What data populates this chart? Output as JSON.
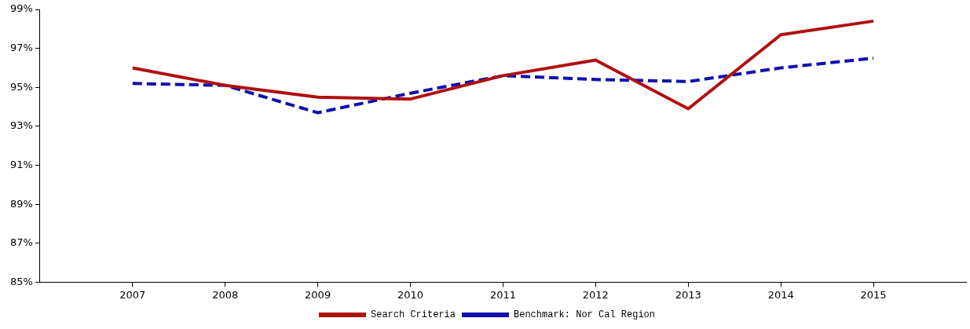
{
  "chart_data": {
    "type": "line",
    "x": [
      2007,
      2008,
      2009,
      2010,
      2011,
      2012,
      2013,
      2014,
      2015
    ],
    "series": [
      {
        "name": "Search Criteria",
        "color": "#b01010",
        "line_style": "solid",
        "values": [
          96.0,
          95.1,
          94.5,
          94.4,
          95.6,
          96.4,
          93.9,
          97.7,
          98.4
        ]
      },
      {
        "name": "Benchmark: Nor Cal Region",
        "color": "#1010b0",
        "line_style": "dashed",
        "values": [
          95.2,
          95.1,
          93.7,
          94.7,
          95.6,
          95.4,
          95.3,
          96.0,
          96.5
        ]
      }
    ],
    "xlim": [
      2006,
      2016
    ],
    "xticks": [
      2007,
      2008,
      2009,
      2010,
      2011,
      2012,
      2013,
      2014,
      2015
    ],
    "ylim": [
      85,
      99
    ],
    "yticks": [
      {
        "value": 85,
        "label": "85%"
      },
      {
        "value": 87,
        "label": "87%"
      },
      {
        "value": 89,
        "label": "89%"
      },
      {
        "value": 91,
        "label": "91%"
      },
      {
        "value": 93,
        "label": "93%"
      },
      {
        "value": 95,
        "label": "95%"
      },
      {
        "value": 97,
        "label": "97%"
      },
      {
        "value": 99,
        "label": "99%"
      }
    ],
    "grid": false,
    "legend": "bottom",
    "marker": "none"
  }
}
